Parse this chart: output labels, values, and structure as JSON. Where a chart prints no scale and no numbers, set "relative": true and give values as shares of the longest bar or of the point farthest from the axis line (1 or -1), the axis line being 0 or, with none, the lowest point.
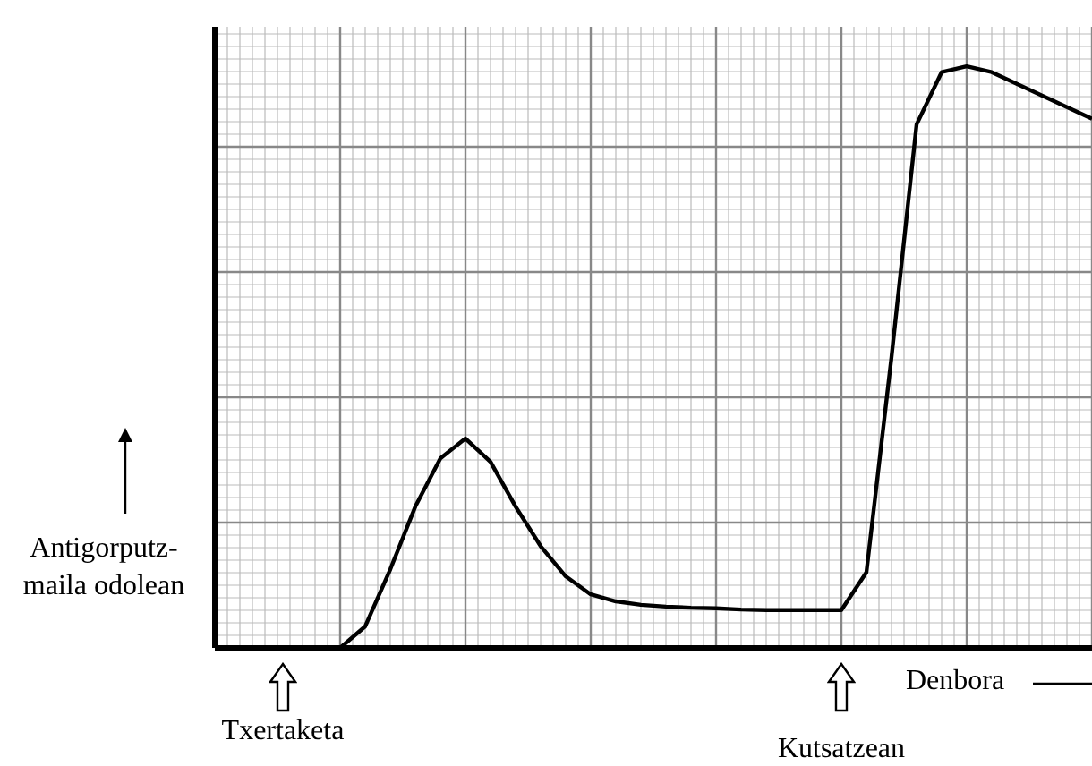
{
  "chart_data": {
    "type": "line",
    "relative": true,
    "xlabel": "Denbora",
    "ylabel": "Antigorputz-maila odolean",
    "grid": true,
    "annotations": [
      "Txertaketa",
      "Kutsatzean"
    ],
    "categories": [
      null,
      null,
      null,
      null,
      null,
      null,
      null,
      null,
      null,
      null,
      null,
      null,
      null,
      null,
      null,
      null,
      null,
      null,
      null,
      null,
      null,
      null,
      null,
      null,
      null,
      null,
      null,
      null,
      null,
      null,
      null,
      null,
      null,
      null,
      null,
      null
    ],
    "series": [
      {
        "color": "#000000",
        "values": [
          null,
          null,
          null,
          null,
          null,
          0,
          0.037,
          0.135,
          0.243,
          0.326,
          0.36,
          0.32,
          0.243,
          0.175,
          0.123,
          0.092,
          0.08,
          0.074,
          0.071,
          0.069,
          0.068,
          0.066,
          0.065,
          0.065,
          0.065,
          0.065,
          0.13,
          0.5,
          0.9,
          0.99,
          1,
          0.99,
          0.97,
          0.95,
          0.93,
          0.91
        ]
      }
    ]
  }
}
